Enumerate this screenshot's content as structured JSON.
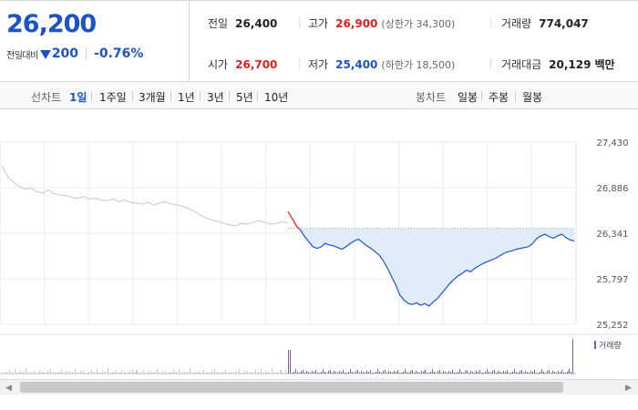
{
  "price": {
    "current": "26,200",
    "change_label": "전일대비",
    "change_amount": "200",
    "change_percent": "-0.76%"
  },
  "stats": {
    "prev_close": {
      "label": "전일",
      "value": "26,400"
    },
    "high": {
      "label": "고가",
      "value": "26,900",
      "sub": "(상한가 34,300)"
    },
    "volume": {
      "label": "거래량",
      "value": "774,047"
    },
    "open": {
      "label": "시가",
      "value": "26,700"
    },
    "low": {
      "label": "저가",
      "value": "25,400",
      "sub": "(하한가 18,500)"
    },
    "amount": {
      "label": "거래대금",
      "value": "20,129",
      "unit": "백만"
    }
  },
  "line_tabs": {
    "label": "선차트",
    "items": [
      "1일",
      "1주일",
      "3개월",
      "1년",
      "3년",
      "5년",
      "10년"
    ],
    "active": "1일"
  },
  "candle_tabs": {
    "label": "봉차트",
    "items": [
      "일봉",
      "주봉",
      "월봉"
    ]
  },
  "colors": {
    "up": "#e0201c",
    "down": "#1c54c7",
    "prev_day_line": "#c8c8c8",
    "fill": "#dde9f8",
    "volume": "#7b5ea7"
  },
  "chart_data": {
    "type": "line",
    "y_ticks": [
      "27,430",
      "26,886",
      "26,341",
      "25,797",
      "25,252"
    ],
    "ylim": [
      25252,
      27430
    ],
    "reference_value": 26400,
    "volume_legend": "거래량",
    "prev_day_series": [
      27150,
      27020,
      26950,
      26900,
      26870,
      26880,
      26840,
      26820,
      26860,
      26810,
      26800,
      26790,
      26770,
      26760,
      26780,
      26750,
      26760,
      26740,
      26730,
      26750,
      26720,
      26740,
      26710,
      26700,
      26690,
      26710,
      26680,
      26700,
      26720,
      26690,
      26680,
      26660,
      26640,
      26600,
      26560,
      26520,
      26500,
      26480,
      26460,
      26440,
      26430,
      26460,
      26450,
      26470,
      26490,
      26470,
      26450,
      26460,
      26480,
      26460
    ],
    "today_series": [
      26600,
      26520,
      26430,
      26380,
      26300,
      26240,
      26180,
      26160,
      26180,
      26220,
      26200,
      26190,
      26170,
      26150,
      26180,
      26220,
      26250,
      26270,
      26230,
      26190,
      26160,
      26120,
      26080,
      26010,
      25920,
      25820,
      25720,
      25600,
      25540,
      25500,
      25490,
      25510,
      25480,
      25500,
      25470,
      25520,
      25560,
      25620,
      25680,
      25740,
      25790,
      25830,
      25860,
      25900,
      25880,
      25920,
      25950,
      25980,
      26000,
      26020,
      26040,
      26070,
      26100,
      26120,
      26130,
      26150,
      26160,
      26170,
      26180,
      26220,
      26280,
      26310,
      26330,
      26300,
      26280,
      26310,
      26330,
      26290,
      26260,
      26250
    ]
  }
}
